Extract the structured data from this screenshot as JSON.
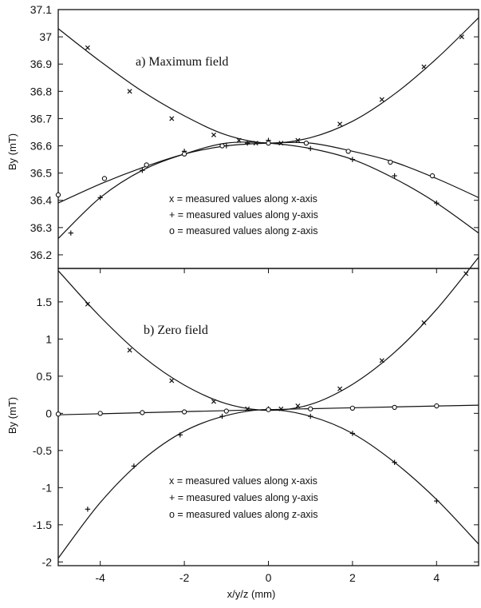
{
  "chart_data": [
    {
      "type": "scatter",
      "panel_label": "a) Maximum field",
      "ylabel": "By (mT)",
      "xlim": [
        -5,
        5
      ],
      "ylim": [
        36.15,
        37.1
      ],
      "yticks": [
        "36.2",
        "36.3",
        "36.4",
        "36.5",
        "36.6",
        "36.7",
        "36.8",
        "36.9",
        "37",
        "37.1"
      ],
      "legend": [
        "x = measured values along x-axis",
        "+ = measured values along y-axis",
        "o = measured values along z-axis"
      ],
      "series": [
        {
          "marker": "x",
          "points": [
            [
              -4.3,
              36.96
            ],
            [
              -3.3,
              36.8
            ],
            [
              -2.3,
              36.7
            ],
            [
              -1.3,
              36.64
            ],
            [
              -0.7,
              36.62
            ],
            [
              -0.3,
              36.61
            ],
            [
              0.3,
              36.61
            ],
            [
              0.7,
              36.62
            ],
            [
              1.7,
              36.68
            ],
            [
              2.7,
              36.77
            ],
            [
              3.7,
              36.89
            ],
            [
              4.6,
              37.0
            ]
          ]
        },
        {
          "marker": "+",
          "points": [
            [
              -4.7,
              36.28
            ],
            [
              -4.0,
              36.41
            ],
            [
              -3.0,
              36.51
            ],
            [
              -2.0,
              36.58
            ],
            [
              -1.0,
              36.6
            ],
            [
              -0.5,
              36.61
            ],
            [
              0.0,
              36.62
            ],
            [
              1.0,
              36.59
            ],
            [
              2.0,
              36.55
            ],
            [
              3.0,
              36.49
            ],
            [
              4.0,
              36.39
            ]
          ]
        },
        {
          "marker": "o",
          "points": [
            [
              -5.0,
              36.42
            ],
            [
              -3.9,
              36.48
            ],
            [
              -2.9,
              36.53
            ],
            [
              -2.0,
              36.57
            ],
            [
              -1.1,
              36.6
            ],
            [
              0.0,
              36.61
            ],
            [
              0.9,
              36.61
            ],
            [
              1.9,
              36.58
            ],
            [
              2.9,
              36.54
            ],
            [
              3.9,
              36.49
            ]
          ]
        }
      ],
      "curves": [
        {
          "fit": "x",
          "points": [
            [
              -5,
              37.03
            ],
            [
              -4,
              36.91
            ],
            [
              -3,
              36.8
            ],
            [
              -2,
              36.71
            ],
            [
              -1,
              36.64
            ],
            [
              0,
              36.61
            ],
            [
              1,
              36.63
            ],
            [
              2,
              36.69
            ],
            [
              3,
              36.79
            ],
            [
              4,
              36.92
            ],
            [
              5,
              37.07
            ]
          ]
        },
        {
          "fit": "+",
          "points": [
            [
              -5,
              36.26
            ],
            [
              -4,
              36.41
            ],
            [
              -3,
              36.51
            ],
            [
              -2,
              36.57
            ],
            [
              -1,
              36.61
            ],
            [
              0,
              36.61
            ],
            [
              1,
              36.59
            ],
            [
              2,
              36.55
            ],
            [
              3,
              36.48
            ],
            [
              4,
              36.39
            ],
            [
              5,
              36.28
            ]
          ]
        },
        {
          "fit": "o",
          "points": [
            [
              -5,
              36.39
            ],
            [
              -4,
              36.46
            ],
            [
              -3,
              36.52
            ],
            [
              -2,
              36.57
            ],
            [
              -1,
              36.6
            ],
            [
              0,
              36.61
            ],
            [
              1,
              36.61
            ],
            [
              2,
              36.58
            ],
            [
              3,
              36.54
            ],
            [
              4,
              36.48
            ],
            [
              5,
              36.41
            ]
          ]
        }
      ]
    },
    {
      "type": "scatter",
      "panel_label": "b) Zero field",
      "ylabel": "By (mT)",
      "xlabel": "x/y/z (mm)",
      "xlim": [
        -5,
        5
      ],
      "ylim": [
        -2.05,
        1.95
      ],
      "yticks": [
        "-2",
        "-1.5",
        "-1",
        "-0.5",
        "0",
        "0.5",
        "1",
        "1.5"
      ],
      "xticks": [
        "-4",
        "-2",
        "0",
        "2",
        "4"
      ],
      "legend": [
        "x = measured values along x-axis",
        "+ = measured values along y-axis",
        "o = measured values along z-axis"
      ],
      "series": [
        {
          "marker": "x",
          "points": [
            [
              -4.3,
              1.47
            ],
            [
              -3.3,
              0.85
            ],
            [
              -2.3,
              0.44
            ],
            [
              -1.3,
              0.16
            ],
            [
              -0.5,
              0.06
            ],
            [
              0.3,
              0.06
            ],
            [
              0.7,
              0.1
            ],
            [
              1.7,
              0.33
            ],
            [
              2.7,
              0.71
            ],
            [
              3.7,
              1.22
            ],
            [
              4.7,
              1.88
            ]
          ]
        },
        {
          "marker": "+",
          "points": [
            [
              -4.3,
              -1.29
            ],
            [
              -3.2,
              -0.71
            ],
            [
              -2.1,
              -0.29
            ],
            [
              -1.1,
              -0.04
            ],
            [
              0.0,
              0.06
            ],
            [
              1.0,
              -0.04
            ],
            [
              2.0,
              -0.27
            ],
            [
              3.0,
              -0.66
            ],
            [
              4.0,
              -1.18
            ]
          ]
        },
        {
          "marker": "o",
          "points": [
            [
              -5.0,
              -0.01
            ],
            [
              -4.0,
              0.0
            ],
            [
              -3.0,
              0.01
            ],
            [
              -2.0,
              0.02
            ],
            [
              -1.0,
              0.03
            ],
            [
              0.0,
              0.05
            ],
            [
              1.0,
              0.06
            ],
            [
              2.0,
              0.07
            ],
            [
              3.0,
              0.08
            ],
            [
              4.0,
              0.1
            ]
          ]
        }
      ],
      "curves": [
        {
          "fit": "x",
          "points": [
            [
              -5,
              1.92
            ],
            [
              -4,
              1.3
            ],
            [
              -3,
              0.77
            ],
            [
              -2,
              0.38
            ],
            [
              -1,
              0.13
            ],
            [
              0,
              0.04
            ],
            [
              1,
              0.12
            ],
            [
              2,
              0.39
            ],
            [
              3,
              0.82
            ],
            [
              4,
              1.4
            ],
            [
              5,
              2.1
            ]
          ]
        },
        {
          "fit": "+",
          "points": [
            [
              -5,
              -1.95
            ],
            [
              -4,
              -1.2
            ],
            [
              -3,
              -0.63
            ],
            [
              -2,
              -0.24
            ],
            [
              -1,
              -0.03
            ],
            [
              0,
              0.05
            ],
            [
              1,
              -0.04
            ],
            [
              2,
              -0.27
            ],
            [
              3,
              -0.66
            ],
            [
              4,
              -1.16
            ],
            [
              5,
              -1.76
            ]
          ]
        },
        {
          "fit": "o",
          "points": [
            [
              -5,
              -0.02
            ],
            [
              0,
              0.05
            ],
            [
              5,
              0.11
            ]
          ]
        }
      ]
    }
  ]
}
